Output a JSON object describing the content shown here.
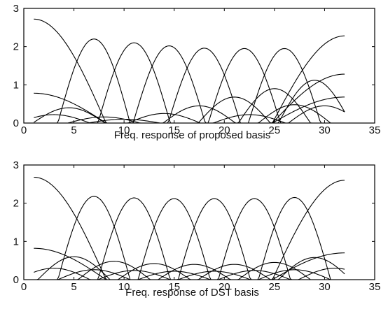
{
  "chart_data": [
    {
      "type": "line",
      "title": "",
      "xlabel": "Freq. response of proposed basis",
      "ylabel": "",
      "xlim": [
        0,
        35
      ],
      "ylim": [
        0,
        3
      ],
      "xticks": [
        0,
        5,
        10,
        15,
        20,
        25,
        30,
        35
      ],
      "yticks": [
        0,
        1,
        2,
        3
      ],
      "grid": false,
      "legend": "none",
      "x": [
        1,
        32
      ],
      "series": [
        {
          "peak_x": 1,
          "peak": 2.72,
          "curve": "edge-left"
        },
        {
          "peak_x": 7,
          "peak": 2.2
        },
        {
          "peak_x": 11,
          "peak": 2.1
        },
        {
          "peak_x": 14.5,
          "peak": 2.02
        },
        {
          "peak_x": 18,
          "peak": 1.96
        },
        {
          "peak_x": 22,
          "peak": 1.95
        },
        {
          "peak_x": 26,
          "peak": 1.95
        },
        {
          "peak_x": 32,
          "peak": 2.28,
          "curve": "edge-right"
        },
        {
          "peak_x": 1,
          "peak": 0.78,
          "curve": "edge-left"
        },
        {
          "peak_x": 4.5,
          "peak": 0.4
        },
        {
          "peak_x": 21,
          "peak": 0.68
        },
        {
          "peak_x": 25,
          "peak": 0.9
        },
        {
          "peak_x": 29,
          "peak": 1.12
        },
        {
          "peak_x": 32,
          "peak": 1.28,
          "curve": "edge-right"
        },
        {
          "peak_x": 3,
          "peak": 0.22
        },
        {
          "peak_x": 8,
          "peak": 0.16
        },
        {
          "peak_x": 14,
          "peak": 0.25
        },
        {
          "peak_x": 17.5,
          "peak": 0.45
        },
        {
          "peak_x": 27,
          "peak": 0.48
        },
        {
          "peak_x": 30,
          "peak": 0.45
        },
        {
          "peak_x": 10,
          "peak": 0.1
        },
        {
          "peak_x": 22.5,
          "peak": 0.22
        },
        {
          "peak_x": 32,
          "peak": 0.68,
          "curve": "edge-right"
        }
      ]
    },
    {
      "type": "line",
      "title": "",
      "xlabel": "Freq. response of DST basis",
      "ylabel": "",
      "xlim": [
        0,
        35
      ],
      "ylim": [
        0,
        3
      ],
      "xticks": [
        0,
        5,
        10,
        15,
        20,
        25,
        30,
        35
      ],
      "yticks": [
        0,
        1,
        2,
        3
      ],
      "grid": false,
      "legend": "none",
      "x": [
        1,
        32
      ],
      "series": [
        {
          "peak_x": 1,
          "peak": 2.68,
          "curve": "edge-left"
        },
        {
          "peak_x": 7,
          "peak": 2.18
        },
        {
          "peak_x": 11,
          "peak": 2.14
        },
        {
          "peak_x": 15,
          "peak": 2.12
        },
        {
          "peak_x": 19,
          "peak": 2.12
        },
        {
          "peak_x": 23,
          "peak": 2.12
        },
        {
          "peak_x": 27,
          "peak": 2.15
        },
        {
          "peak_x": 32,
          "peak": 2.6,
          "curve": "edge-right"
        },
        {
          "peak_x": 1,
          "peak": 0.82,
          "curve": "edge-left"
        },
        {
          "peak_x": 5,
          "peak": 0.6
        },
        {
          "peak_x": 9,
          "peak": 0.48
        },
        {
          "peak_x": 13,
          "peak": 0.42
        },
        {
          "peak_x": 17,
          "peak": 0.4
        },
        {
          "peak_x": 21,
          "peak": 0.4
        },
        {
          "peak_x": 25,
          "peak": 0.45
        },
        {
          "peak_x": 29,
          "peak": 0.58
        },
        {
          "peak_x": 32,
          "peak": 0.7,
          "curve": "edge-right"
        },
        {
          "peak_x": 3,
          "peak": 0.3
        },
        {
          "peak_x": 7,
          "peak": 0.26
        },
        {
          "peak_x": 11,
          "peak": 0.24
        },
        {
          "peak_x": 15,
          "peak": 0.22
        },
        {
          "peak_x": 19,
          "peak": 0.22
        },
        {
          "peak_x": 23,
          "peak": 0.24
        },
        {
          "peak_x": 27,
          "peak": 0.26
        },
        {
          "peak_x": 31,
          "peak": 0.3
        }
      ]
    }
  ]
}
